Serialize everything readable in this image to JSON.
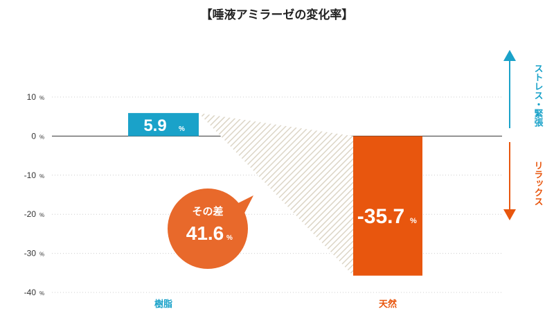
{
  "chart_data": {
    "type": "bar",
    "title": "【唾液アミラーゼの変化率】",
    "categories": [
      "樹脂",
      "天然"
    ],
    "values": [
      5.9,
      -35.7
    ],
    "ylim": [
      -40,
      10
    ],
    "yticks": [
      10,
      0,
      -10,
      -20,
      -30,
      -40
    ],
    "tick_unit": "%",
    "value_unit": "%",
    "grid": true,
    "difference": {
      "label": "その差",
      "value": "41.6",
      "unit": "%"
    },
    "side_labels": {
      "up": "ストレス・緊張",
      "down": "リラックス"
    }
  },
  "colors": {
    "resin": "#1aa2c9",
    "natural": "#e8560e",
    "up_arrow": "#1aa2c9",
    "down_arrow": "#e8560e",
    "bubble": "#e8692b",
    "hatch": "#dcd5c6",
    "grid": "#cccccc",
    "zero": "#333333"
  }
}
